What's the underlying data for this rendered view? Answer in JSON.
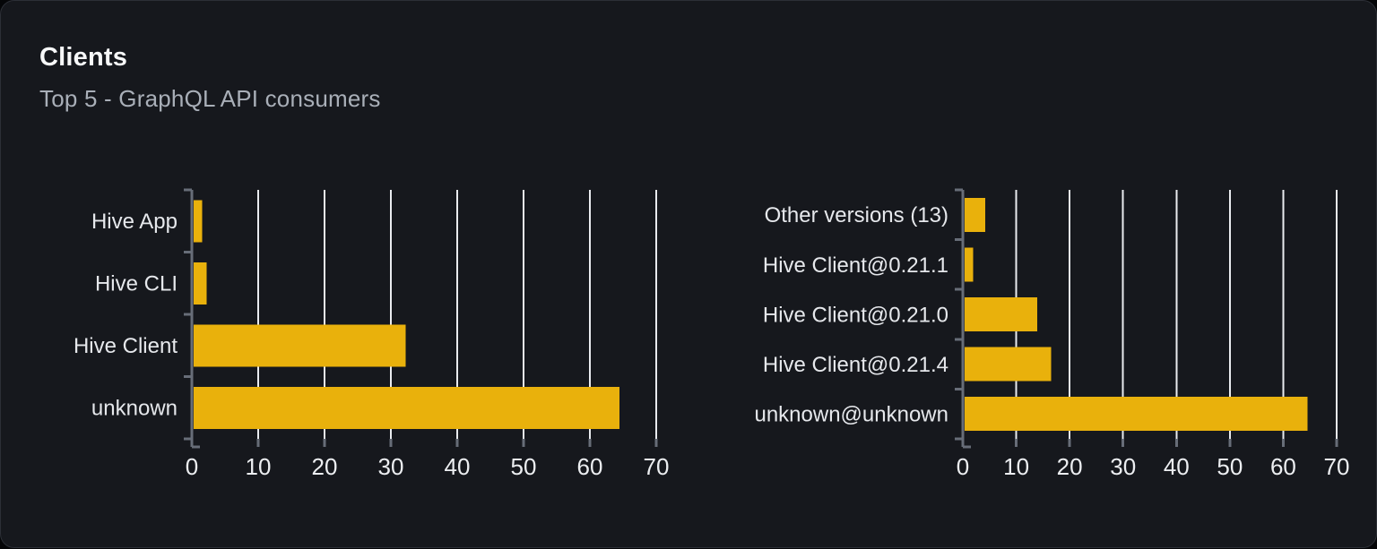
{
  "card": {
    "title": "Clients",
    "subtitle": "Top 5 - GraphQL API consumers"
  },
  "colors": {
    "page_bg": "#050608",
    "card_bg": "#16181d",
    "card_border": "#2c2f36",
    "bar": "#e9b10c",
    "gridline": "#e9ebef",
    "axis": "#676d78",
    "category_text": "#e6e8ec",
    "tick_text": "#eceef1",
    "title_text": "#f7f8f9",
    "subtitle_text": "#a9afb8"
  },
  "chart_data": [
    {
      "type": "bar",
      "orientation": "horizontal",
      "title": "",
      "categories": [
        "Hive App",
        "Hive CLI",
        "Hive Client",
        "unknown"
      ],
      "values": [
        1.4,
        2.1,
        32.1,
        64.3
      ],
      "xlabel": "",
      "ylabel": "",
      "xlim": [
        0,
        70
      ],
      "xticks": [
        0,
        10,
        20,
        30,
        40,
        50,
        60,
        70
      ],
      "grid": true,
      "legend": false
    },
    {
      "type": "bar",
      "orientation": "horizontal",
      "title": "",
      "categories": [
        "Other versions (13)",
        "Hive Client@0.21.1",
        "Hive Client@0.21.0",
        "Hive Client@0.21.4",
        "unknown@unknown"
      ],
      "values": [
        4.0,
        1.8,
        13.8,
        16.4,
        64.4
      ],
      "xlabel": "",
      "ylabel": "",
      "xlim": [
        0,
        70
      ],
      "xticks": [
        0,
        10,
        20,
        30,
        40,
        50,
        60,
        70
      ],
      "grid": true,
      "legend": false
    }
  ]
}
